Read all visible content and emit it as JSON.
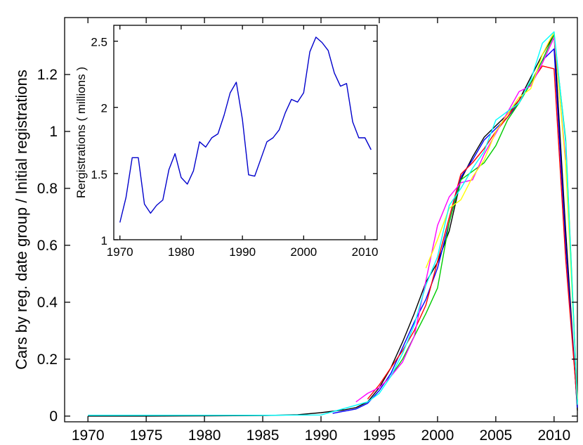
{
  "chart_data": [
    {
      "id": "main",
      "type": "line",
      "title": "",
      "xlabel": "",
      "ylabel": "Cars by reg. date group / Initial registrations",
      "xlim": [
        1968,
        2012
      ],
      "ylim": [
        -0.02,
        1.4
      ],
      "xticks": [
        1970,
        1975,
        1980,
        1985,
        1990,
        1995,
        2000,
        2005,
        2010
      ],
      "yticks": [
        0,
        0.2,
        0.4,
        0.6,
        0.8,
        1,
        1.2
      ],
      "ytick_labels": [
        "0",
        "0.2",
        "0.4",
        "0.6",
        "0.8",
        "1",
        "1.2"
      ],
      "grid": false,
      "series": [
        {
          "name": "black",
          "color": "#000000",
          "x": [
            1970,
            1975,
            1980,
            1985,
            1988,
            1990,
            1992,
            1993,
            1994,
            1995,
            1996,
            1997,
            1998,
            1999,
            2000,
            2001,
            2002,
            2003,
            2004,
            2005,
            2006,
            2007,
            2008,
            2009,
            2010,
            2011,
            2012
          ],
          "y": [
            0,
            0,
            0.001,
            0.002,
            0.005,
            0.012,
            0.022,
            0.03,
            0.05,
            0.1,
            0.17,
            0.26,
            0.36,
            0.47,
            0.54,
            0.65,
            0.83,
            0.91,
            0.98,
            1.02,
            1.06,
            1.11,
            1.19,
            1.27,
            1.34,
            0.65,
            0.02
          ]
        },
        {
          "name": "blue",
          "color": "#0000ff",
          "x": [
            1991,
            1993,
            1994,
            1995,
            1996,
            1997,
            1998,
            1999,
            2000,
            2001,
            2002,
            2003,
            2004,
            2005,
            2006,
            2007,
            2008,
            2009,
            2010,
            2011,
            2012
          ],
          "y": [
            0.01,
            0.025,
            0.045,
            0.09,
            0.15,
            0.24,
            0.33,
            0.41,
            0.52,
            0.68,
            0.84,
            0.9,
            0.97,
            1.01,
            1.05,
            1.1,
            1.17,
            1.25,
            1.29,
            0.6,
            0.03
          ]
        },
        {
          "name": "red",
          "color": "#ff0000",
          "x": [
            1994,
            1995,
            1996,
            1997,
            1998,
            1999,
            2002,
            2003,
            2004,
            2005,
            2006,
            2009,
            2010,
            2011,
            2012
          ],
          "y": [
            0.06,
            0.11,
            0.17,
            0.23,
            0.3,
            0.39,
            0.85,
            0.89,
            0.94,
            1.0,
            1.05,
            1.23,
            1.22,
            0.55,
            0.04
          ]
        },
        {
          "name": "green",
          "color": "#00cc00",
          "x": [
            1995,
            1996,
            1997,
            1998,
            1999,
            2000,
            2001,
            2002,
            2003,
            2004,
            2005,
            2006,
            2007,
            2008,
            2009,
            2010,
            2011,
            2012
          ],
          "y": [
            0.1,
            0.14,
            0.2,
            0.28,
            0.36,
            0.45,
            0.68,
            0.83,
            0.86,
            0.89,
            0.95,
            1.04,
            1.1,
            1.17,
            1.25,
            1.34,
            0.97,
            0.05
          ]
        },
        {
          "name": "magenta",
          "color": "#ff00ff",
          "x": [
            1993,
            1994,
            1995,
            1996,
            1997,
            1998,
            2000,
            2001,
            2002,
            2003,
            2004,
            2007,
            2008,
            2009,
            2010,
            2011
          ],
          "y": [
            0.05,
            0.08,
            0.1,
            0.14,
            0.19,
            0.28,
            0.67,
            0.77,
            0.82,
            0.83,
            0.92,
            1.14,
            1.16,
            1.24,
            1.33,
            0.9
          ]
        },
        {
          "name": "yellow",
          "color": "#ffff00",
          "x": [
            1999,
            2000,
            2001,
            2002,
            2003,
            2004,
            2005,
            2006,
            2007,
            2008,
            2009,
            2010,
            2011,
            2012
          ],
          "y": [
            0.52,
            0.62,
            0.73,
            0.76,
            0.84,
            0.9,
            1.0,
            1.06,
            1.12,
            1.15,
            1.27,
            1.35,
            0.88,
            0.06
          ]
        },
        {
          "name": "cyan",
          "color": "#00ffff",
          "x": [
            1970,
            1975,
            1980,
            1985,
            1990,
            1994,
            1995,
            1996,
            1997,
            1998,
            1999,
            2000,
            2001,
            2002,
            2003,
            2004,
            2005,
            2006,
            2007,
            2008,
            2009,
            2010,
            2011,
            2012
          ],
          "y": [
            0.003,
            0.003,
            0.003,
            0.003,
            0.004,
            0.05,
            0.08,
            0.14,
            0.22,
            0.32,
            0.46,
            0.56,
            0.74,
            0.8,
            0.87,
            0.93,
            1.04,
            1.07,
            1.1,
            1.18,
            1.31,
            1.35,
            0.96,
            0.04
          ]
        }
      ]
    },
    {
      "id": "inset",
      "type": "line",
      "title": "",
      "xlabel": "",
      "ylabel": "Rergistrations ( millions )",
      "xlim": [
        1969,
        2012
      ],
      "ylim": [
        1.0,
        2.62
      ],
      "xticks": [
        1970,
        1980,
        1990,
        2000,
        2010
      ],
      "yticks": [
        1,
        1.5,
        2,
        2.5
      ],
      "ytick_labels": [
        "1",
        "1.5",
        "2",
        "2.5"
      ],
      "grid": false,
      "series": [
        {
          "name": "registrations",
          "color": "#0000cc",
          "x": [
            1970,
            1971,
            1972,
            1973,
            1974,
            1975,
            1976,
            1977,
            1978,
            1979,
            1980,
            1981,
            1982,
            1983,
            1984,
            1985,
            1986,
            1987,
            1988,
            1989,
            1990,
            1991,
            1992,
            1993,
            1994,
            1995,
            1996,
            1997,
            1998,
            1999,
            2000,
            2001,
            2002,
            2003,
            2004,
            2005,
            2006,
            2007,
            2008,
            2009,
            2010,
            2011
          ],
          "y": [
            1.13,
            1.32,
            1.62,
            1.62,
            1.27,
            1.2,
            1.26,
            1.3,
            1.53,
            1.65,
            1.47,
            1.42,
            1.52,
            1.74,
            1.7,
            1.77,
            1.8,
            1.94,
            2.11,
            2.19,
            1.91,
            1.49,
            1.48,
            1.61,
            1.74,
            1.77,
            1.83,
            1.96,
            2.06,
            2.04,
            2.11,
            2.42,
            2.53,
            2.49,
            2.43,
            2.26,
            2.16,
            2.18,
            1.89,
            1.77,
            1.77,
            1.68
          ]
        }
      ]
    }
  ]
}
